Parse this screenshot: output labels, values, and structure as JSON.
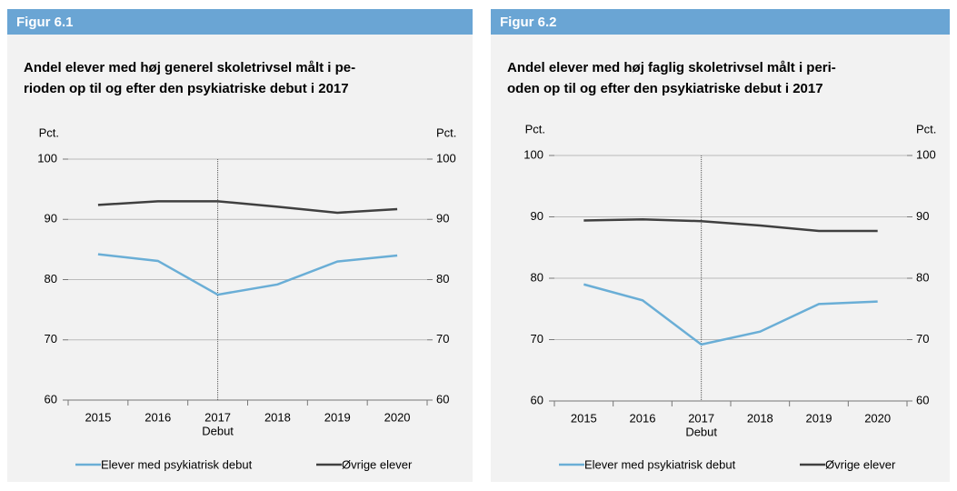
{
  "chart_data": [
    {
      "type": "line",
      "header": "Figur 6.1",
      "title": [
        "Andel elever med høj generel skoletrivsel målt i pe-",
        "rioden op til og efter den psykiatriske debut i 2017"
      ],
      "ylabel": "Pct.",
      "y2label": "Pct.",
      "categories": [
        "2015",
        "2016",
        "2017",
        "2018",
        "2019",
        "2020"
      ],
      "annotation": {
        "text": "Debut",
        "category": "2017"
      },
      "ylim": [
        60,
        100
      ],
      "yticks": [
        60,
        70,
        80,
        90,
        100
      ],
      "y2lim": [
        60,
        100
      ],
      "y2ticks": [
        60,
        70,
        80,
        90,
        100
      ],
      "grid": true,
      "series": [
        {
          "name": "Elever med psykiatrisk debut",
          "color": "#6aaed6",
          "values": [
            84.2,
            83.1,
            77.5,
            79.2,
            83.0,
            84.0
          ]
        },
        {
          "name": "Øvrige elever",
          "color": "#404040",
          "values": [
            92.4,
            93.0,
            93.0,
            92.1,
            91.1,
            91.7
          ]
        }
      ]
    },
    {
      "type": "line",
      "header": "Figur 6.2",
      "title": [
        "Andel elever med høj faglig skoletrivsel målt i peri-",
        "oden op til og efter den psykiatriske debut i 2017"
      ],
      "ylabel": "Pct.",
      "y2label": "Pct.",
      "categories": [
        "2015",
        "2016",
        "2017",
        "2018",
        "2019",
        "2020"
      ],
      "annotation": {
        "text": "Debut",
        "category": "2017"
      },
      "ylim": [
        60,
        100
      ],
      "yticks": [
        60,
        70,
        80,
        90,
        100
      ],
      "y2lim": [
        60,
        100
      ],
      "y2ticks": [
        60,
        70,
        80,
        90,
        100
      ],
      "grid": true,
      "series": [
        {
          "name": "Elever med psykiatrisk debut",
          "color": "#6aaed6",
          "values": [
            79.0,
            76.4,
            69.2,
            71.3,
            75.8,
            76.2
          ]
        },
        {
          "name": "Øvrige elever",
          "color": "#404040",
          "values": [
            89.4,
            89.6,
            89.3,
            88.6,
            87.7,
            87.7
          ]
        }
      ]
    }
  ]
}
